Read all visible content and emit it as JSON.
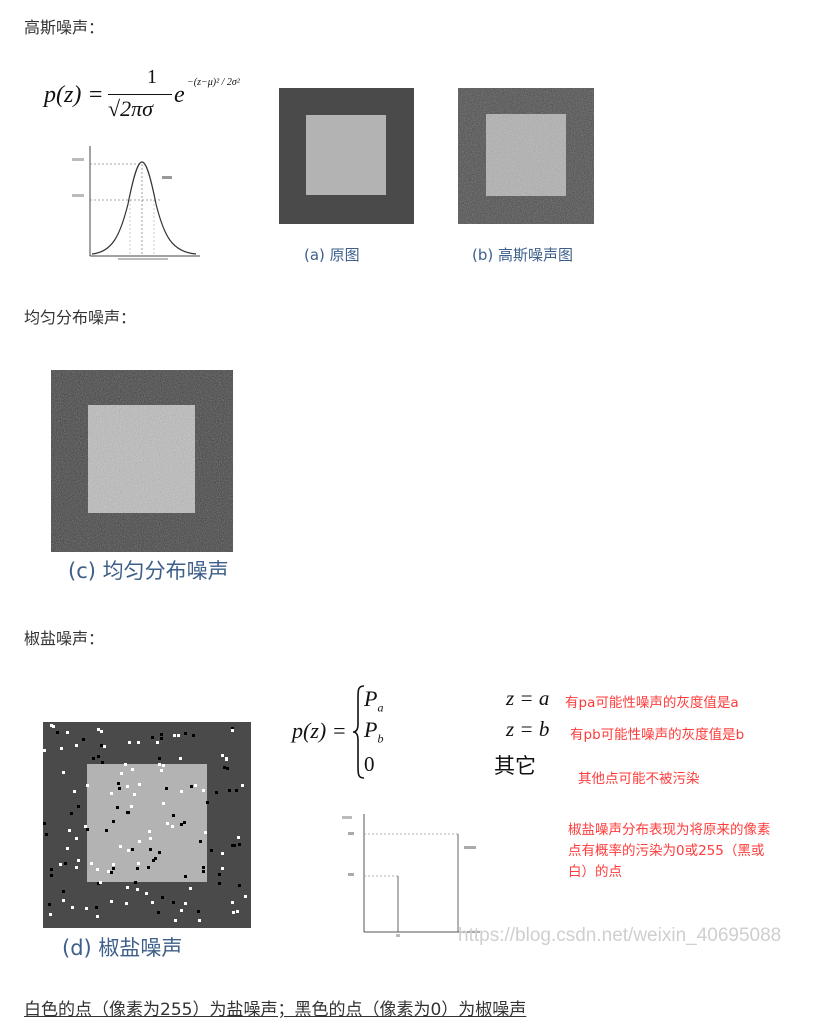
{
  "sections": {
    "gaussian": {
      "heading": "高斯噪声：",
      "formula_lhs": "p(z) =",
      "formula_num": "1",
      "formula_den": "√2πσ",
      "formula_base": "e",
      "formula_exp": "−(z−μ)² / 2σ²",
      "caption_a": "(a) 原图",
      "caption_b": "(b) 高斯噪声图"
    },
    "uniform": {
      "heading": "均匀分布噪声：",
      "caption_c": "(c) 均匀分布噪声"
    },
    "salt_pepper": {
      "heading": "椒盐噪声：",
      "formula_lhs": "p(z) =",
      "case1_val": "P",
      "case1_sub": "a",
      "case1_cond": "z = a",
      "case2_val": "P",
      "case2_sub": "b",
      "case2_cond": "z = b",
      "case3_val": "0",
      "case3_cond": "其它",
      "note1": "有pa可能性噪声的灰度值是a",
      "note2": "有pb可能性噪声的灰度值是b",
      "note3": "其他点可能不被污染",
      "note4_line1": "椒盐噪声分布表现为将原来的像素",
      "note4_line2": "点有概率的污染为0或255（黑或",
      "note4_line3": "白）的点",
      "caption_d": "(d) 椒盐噪声"
    }
  },
  "watermark": "https://blog.csdn.net/weixin_40695088",
  "footer": "白色的点（像素为255）为盐噪声；黑色的点（像素为0）为椒噪声",
  "colors": {
    "caption_blue": "#3d5f8a",
    "annotation_red": "#ff3b3b",
    "dark_bg": "#4a4a4a",
    "light_square": "#b3b3b3"
  }
}
